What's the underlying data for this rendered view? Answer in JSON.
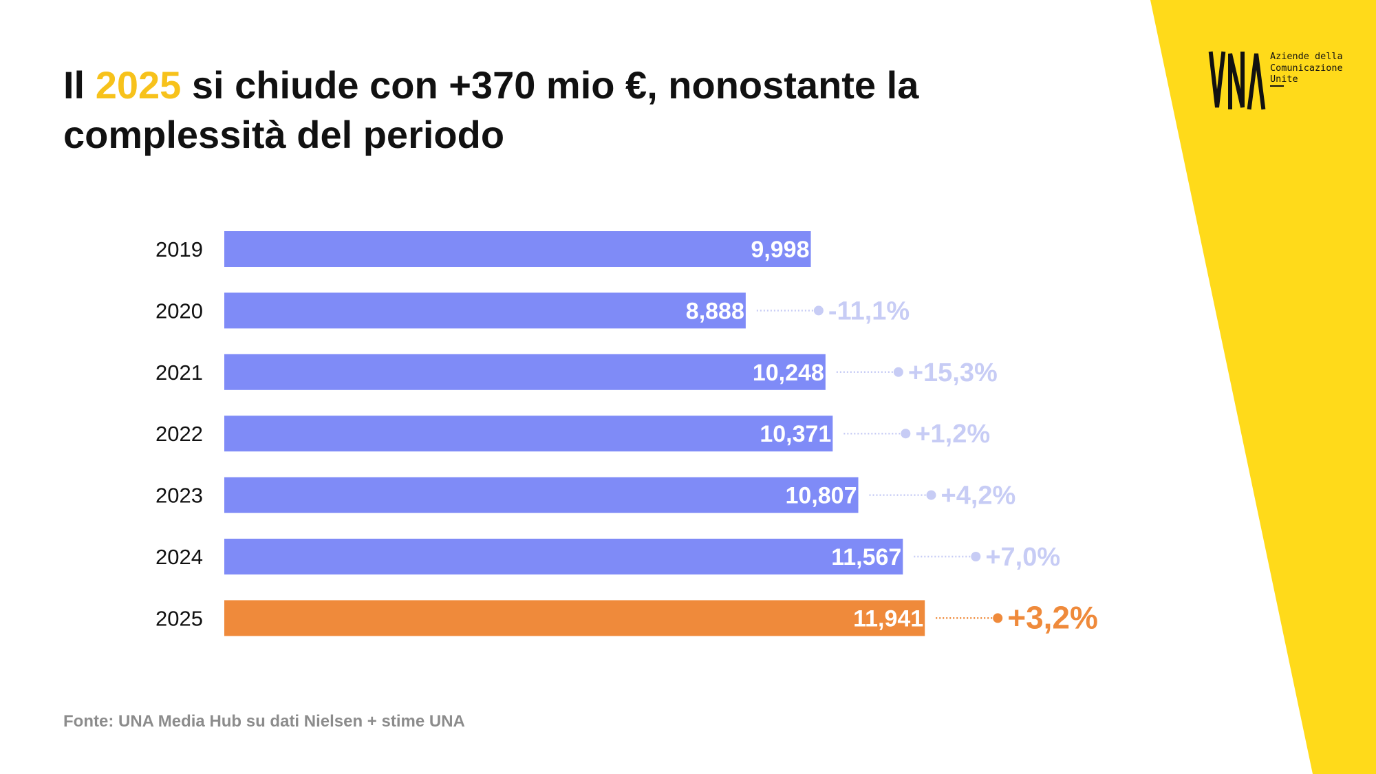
{
  "title": {
    "prefix": "Il ",
    "highlight": "2025",
    "rest": " si chiude con +370 mio €, nonostante la",
    "line2": "complessità del periodo"
  },
  "logo": {
    "mark": "UNA",
    "lines": [
      "Aziende della",
      "Comunicazione",
      "Unite"
    ]
  },
  "colors": {
    "bar": "#7F8BF7",
    "bar_highlight": "#EF8A3B",
    "change_label": "#C7CCF5",
    "change_label_highlight": "#EF8A3B",
    "brand_yellow": "#FFDA1A",
    "title_highlight": "#F7C21B"
  },
  "chart_data": {
    "type": "bar",
    "orientation": "horizontal",
    "categories": [
      "2019",
      "2020",
      "2021",
      "2022",
      "2023",
      "2024",
      "2025"
    ],
    "values": [
      9998,
      8888,
      10248,
      10371,
      10807,
      11567,
      11941
    ],
    "value_labels": [
      "9,998",
      "8,888",
      "10,248",
      "10,371",
      "10,807",
      "11,567",
      "11,941"
    ],
    "changes": [
      "",
      "-11,1%",
      "+15,3%",
      "+1,2%",
      "+4,2%",
      "+7,0%",
      "+3,2%"
    ],
    "highlight_index": 6,
    "xlim": [
      0,
      12000
    ],
    "xlabel": "",
    "ylabel": "",
    "legend": "none",
    "grid": false
  },
  "source": "Fonte: UNA Media Hub su dati Nielsen + stime UNA"
}
